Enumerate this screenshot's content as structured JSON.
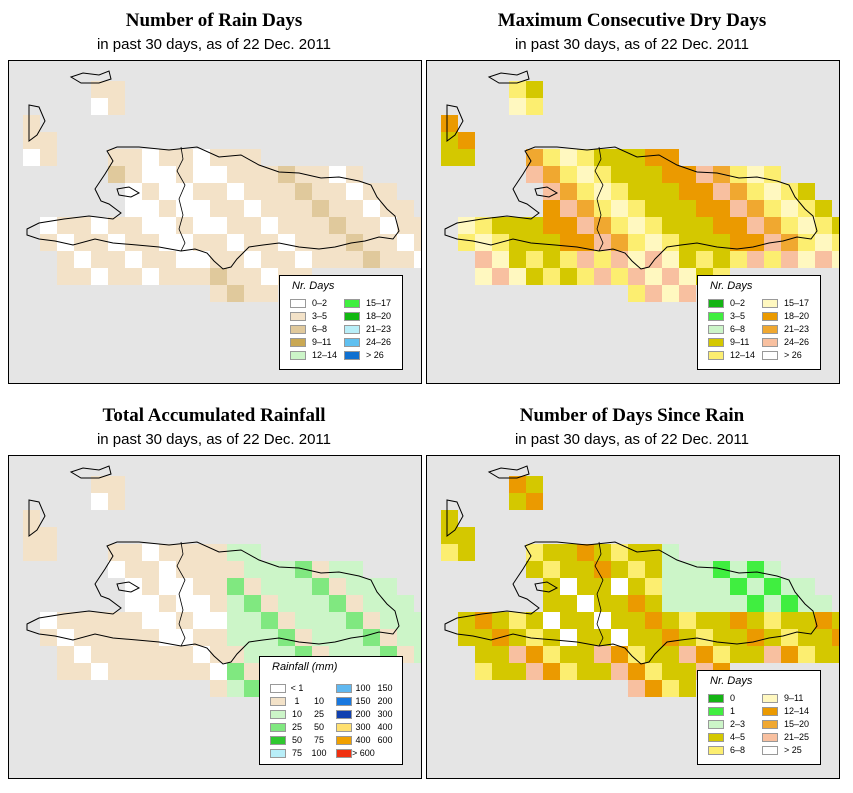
{
  "panels": [
    {
      "title": "Number of Rain Days",
      "subtitle": "in past 30 days, as of  22 Dec. 2011",
      "legend_title": "Nr. Days",
      "legend_columns": [
        [
          {
            "label": "0–2",
            "color": "#ffffff"
          },
          {
            "label": "3–5",
            "color": "#f3e2c8"
          },
          {
            "label": "6–8",
            "color": "#e0c99c"
          },
          {
            "label": "9–11",
            "color": "#c9a854"
          },
          {
            "label": "12–14",
            "color": "#ccf5c8"
          }
        ],
        [
          {
            "label": "15–17",
            "color": "#40f040"
          },
          {
            "label": "18–20",
            "color": "#12b812"
          },
          {
            "label": "21–23",
            "color": "#b8eef8"
          },
          {
            "label": "24–26",
            "color": "#60c0f0"
          },
          {
            "label": "> 26",
            "color": "#1070d0"
          }
        ]
      ]
    },
    {
      "title": "Maximum Consecutive Dry Days",
      "subtitle": "in past 30 days, as of  22 Dec. 2011",
      "legend_title": "Nr. Days",
      "legend_columns": [
        [
          {
            "label": "0–2",
            "color": "#14b414"
          },
          {
            "label": "3–5",
            "color": "#40ee40"
          },
          {
            "label": "6–8",
            "color": "#ccf5c8"
          },
          {
            "label": "9–11",
            "color": "#d4c800"
          },
          {
            "label": "12–14",
            "color": "#fcee70"
          }
        ],
        [
          {
            "label": "15–17",
            "color": "#fff8c0"
          },
          {
            "label": "18–20",
            "color": "#eb9a00"
          },
          {
            "label": "21–23",
            "color": "#f0a830"
          },
          {
            "label": "24–26",
            "color": "#f8c0a0"
          },
          {
            "label": "> 26",
            "color": "#ffffff"
          }
        ]
      ]
    },
    {
      "title": "Total Accumulated Rainfall",
      "subtitle": "in past 30 days, as of  22 Dec. 2011",
      "legend_title": "Rainfall (mm)",
      "legend_columns": [
        [
          {
            "lo": "< 1",
            "hi": "",
            "color": "#ffffff"
          },
          {
            "lo": "1",
            "hi": "10",
            "color": "#f3e2c8"
          },
          {
            "lo": "10",
            "hi": "25",
            "color": "#ccf5c8"
          },
          {
            "lo": "25",
            "hi": "50",
            "color": "#80e880"
          },
          {
            "lo": "50",
            "hi": "75",
            "color": "#30c830"
          },
          {
            "lo": "75",
            "hi": "100",
            "color": "#b8eef8"
          }
        ],
        [
          {
            "lo": "100",
            "hi": "150",
            "color": "#60b8f0"
          },
          {
            "lo": "150",
            "hi": "200",
            "color": "#1878e0"
          },
          {
            "lo": "200",
            "hi": "300",
            "color": "#1040b0"
          },
          {
            "lo": "300",
            "hi": "400",
            "color": "#ffe070"
          },
          {
            "lo": "400",
            "hi": "600",
            "color": "#f0a000"
          },
          {
            "lo": "> 600",
            "hi": "",
            "color": "#f03010"
          }
        ]
      ]
    },
    {
      "title": "Number of Days Since Rain",
      "subtitle": "in past 30 days, as of  22 Dec. 2011",
      "legend_title": "Nr. Days",
      "legend_columns": [
        [
          {
            "label": "0",
            "color": "#14b414"
          },
          {
            "label": "1",
            "color": "#40ee40"
          },
          {
            "label": "2–3",
            "color": "#ccf5c8"
          },
          {
            "label": "4–5",
            "color": "#d4c800"
          },
          {
            "label": "6–8",
            "color": "#fcee70"
          }
        ],
        [
          {
            "label": "9–11",
            "color": "#fff8c0"
          },
          {
            "label": "12–14",
            "color": "#eb9a00"
          },
          {
            "label": "15–20",
            "color": "#f0a830"
          },
          {
            "label": "21–25",
            "color": "#f8c0a0"
          },
          {
            "label": "> 25",
            "color": "#ffffff"
          }
        ]
      ]
    }
  ]
}
